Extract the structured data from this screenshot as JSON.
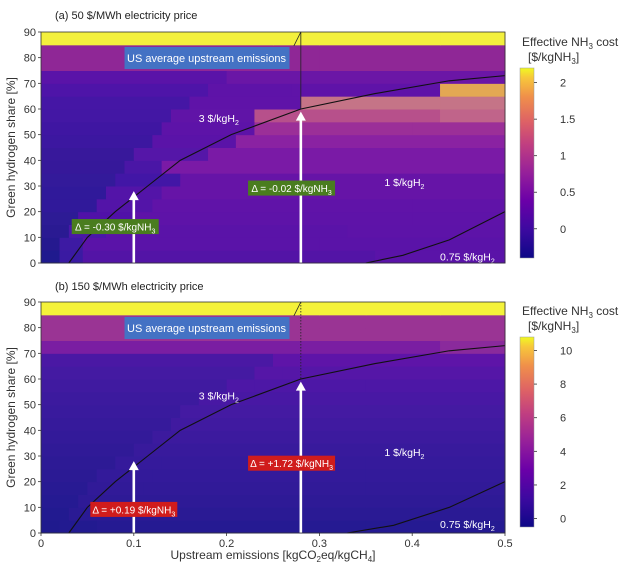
{
  "chart_data": [
    {
      "panel": "(a) 50 $/MWh electricity price",
      "type": "heatmap",
      "ylabel": "Green hydrogen share [%]",
      "xlim": [
        0,
        0.5
      ],
      "ylim": [
        0,
        90
      ],
      "y_ticks": [
        "0",
        "10",
        "20",
        "30",
        "40",
        "50",
        "60",
        "70",
        "80",
        "90"
      ],
      "y_bands": [
        0,
        5,
        10,
        15,
        20,
        25,
        30,
        35,
        40,
        45,
        50,
        55,
        60,
        65,
        70,
        75,
        80,
        85
      ],
      "cell_colors": [
        [
          "#1f1a8e",
          "#3a1aa2",
          "#5314a6",
          "#5a13a8"
        ],
        [
          "#25198f",
          "#3d1aa3",
          "#5a13a8",
          "#5a13a8"
        ],
        [
          "#2a1a92",
          "#4a18a8",
          "#5a13a8",
          "#5d13a8"
        ],
        [
          "#2d1b95",
          "#5011a8",
          "#5e13a8",
          "#5e13a8"
        ],
        [
          "#30199a",
          "#5314a8",
          "#6013a8",
          "#6013a8"
        ],
        [
          "#30199a",
          "#5314a8",
          "#6614a7",
          "#6614a7"
        ],
        [
          "#331a9a",
          "#4216a6",
          "#6614a7",
          "#6614a7"
        ],
        [
          "#36189a",
          "#4a16a6",
          "#7a1aa6",
          "#7a1aa6"
        ],
        [
          "#38189b",
          "#5516a8",
          "#7a1aa6",
          "#7a1aa6"
        ],
        [
          "#3c17a0",
          "#5a13a8",
          "#8a22a2",
          "#8a22a2"
        ],
        [
          "#3f16a2",
          "#5d13a8",
          "#9b2f98",
          "#9b2f98"
        ],
        [
          "#4317a4",
          "#6014a7",
          "#b7508b",
          "#c0648a"
        ],
        [
          "#4516a5",
          "#5f13a8",
          "#c57487",
          "#c57487"
        ],
        [
          "#4e14a8",
          "#5e13a8",
          "#5f13a8",
          "#e3a853"
        ],
        [
          "#5a13a8",
          "#6a16a6",
          "#6b16a6",
          "#6b16a6"
        ],
        [
          "#8f2796",
          "#8f2796",
          "#8f2796",
          "#8f2796"
        ],
        [
          "#8f2796",
          "#8f2796",
          "#8f2796",
          "#8f2796"
        ],
        [
          "#f3f03d",
          "#f3f03d",
          "#f3f03d",
          "#f3f03d"
        ]
      ],
      "cell_breaks": [
        [
          0.02,
          0.045,
          0.36
        ],
        [
          0.02,
          0.045,
          0.3
        ],
        [
          0.03,
          0.07,
          0.33
        ],
        [
          0.04,
          0.1,
          0.4
        ],
        [
          0.06,
          0.12,
          0.4
        ],
        [
          0.07,
          0.13,
          0.45
        ],
        [
          0.08,
          0.15,
          0.4
        ],
        [
          0.09,
          0.13,
          0.4
        ],
        [
          0.1,
          0.18,
          0.4
        ],
        [
          0.12,
          0.21,
          0.4
        ],
        [
          0.13,
          0.23,
          0.4
        ],
        [
          0.14,
          0.23,
          0.43
        ],
        [
          0.16,
          0.28,
          0.43
        ],
        [
          0.18,
          0.27,
          0.43
        ],
        [
          0.2,
          0.3,
          0.43
        ],
        [
          0.25,
          0.3,
          0.43
        ],
        [
          0.25,
          0.3,
          0.43
        ],
        [
          0.25,
          0.3,
          0.43
        ]
      ],
      "contours": [
        {
          "label": "3 $/kgH2",
          "points": [
            [
              0.03,
              0
            ],
            [
              0.05,
              10
            ],
            [
              0.08,
              20
            ],
            [
              0.115,
              30
            ],
            [
              0.15,
              40
            ],
            [
              0.205,
              50
            ],
            [
              0.28,
              60
            ],
            [
              0.36,
              66
            ],
            [
              0.44,
              71
            ],
            [
              0.5,
              73
            ]
          ]
        },
        {
          "label": "0.75 $/kgH2",
          "points": [
            [
              0.35,
              0
            ],
            [
              0.39,
              3
            ],
            [
              0.44,
              9
            ],
            [
              0.5,
              20
            ]
          ]
        }
      ],
      "emission_line_x": 0.28,
      "upstream_label": "US average upstream emissions",
      "contour_labels": [
        {
          "text": "3 $/kgH",
          "sub": "2",
          "x": 0.17,
          "y": 55
        },
        {
          "text": "1 $/kgH",
          "sub": "2",
          "x": 0.37,
          "y": 30
        },
        {
          "text": "0.75 $/kgH",
          "sub": "2",
          "x": 0.43,
          "y": 1
        }
      ],
      "arrows": [
        {
          "x": 0.1,
          "y_from": 0,
          "y_to": 28,
          "label": "Δ = -0.30 $/kgNH",
          "sub": "3",
          "label_x": 0.08,
          "label_y": 14,
          "color": "#4a7d1f"
        },
        {
          "x": 0.28,
          "y_from": 0,
          "y_to": 59,
          "label": "Δ = -0.02 $/kgNH",
          "sub": "3",
          "label_x": 0.27,
          "label_y": 29,
          "color": "#4a7d1f"
        }
      ],
      "colorbar": {
        "title_line1": "Effective NH",
        "title_sub": "3",
        "title_line1_end": " cost",
        "title_line2": "[$/kgNH",
        "title_line2_end": "]",
        "ticks": [
          "0",
          "0.5",
          "1",
          "1.5",
          "2"
        ],
        "range": [
          -0.4,
          2.2
        ]
      }
    },
    {
      "panel": "(b) 150 $/MWh electricity price",
      "type": "heatmap",
      "xlabel": "Upstream emissions [kgCO",
      "xlabel_sub": "2",
      "xlabel_end": "eq/kgCH",
      "xlabel_sub2": "4",
      "xlabel_close": "]",
      "ylabel": "Green hydrogen share [%]",
      "xlim": [
        0,
        0.5
      ],
      "ylim": [
        0,
        90
      ],
      "x_ticks": [
        "0",
        "0.1",
        "0.2",
        "0.3",
        "0.4",
        "0.5"
      ],
      "y_ticks": [
        "0",
        "10",
        "20",
        "30",
        "40",
        "50",
        "60",
        "70",
        "80",
        "90"
      ],
      "y_bands": [
        0,
        5,
        10,
        15,
        20,
        25,
        30,
        35,
        40,
        45,
        50,
        55,
        60,
        65,
        70,
        75,
        80,
        85
      ],
      "cell_colors": [
        [
          "#1f1a8e",
          "#221a90",
          "#251a92",
          "#251a92"
        ],
        [
          "#221a90",
          "#2a1a94",
          "#2a1a94",
          "#2a1a94"
        ],
        [
          "#251a92",
          "#2e1a96",
          "#2e1a96",
          "#2e1a96"
        ],
        [
          "#281a93",
          "#311a98",
          "#311a98",
          "#311a98"
        ],
        [
          "#2b1a94",
          "#331a9a",
          "#331a9a",
          "#331a9a"
        ],
        [
          "#2d1a95",
          "#351a9b",
          "#351a9b",
          "#351a9b"
        ],
        [
          "#301a97",
          "#381a9c",
          "#381a9c",
          "#381a9c"
        ],
        [
          "#331a99",
          "#3c1a9e",
          "#3c1a9e",
          "#3c1a9e"
        ],
        [
          "#361a9b",
          "#401aa0",
          "#401aa0",
          "#401aa0"
        ],
        [
          "#391a9d",
          "#441aa2",
          "#441aa2",
          "#441aa2"
        ],
        [
          "#3c1a9e",
          "#4818a4",
          "#4818a4",
          "#4818a4"
        ],
        [
          "#401aa0",
          "#4d17a6",
          "#4d17a6",
          "#4d17a6"
        ],
        [
          "#441aa2",
          "#5516a7",
          "#5516a7",
          "#5516a7"
        ],
        [
          "#4a18a4",
          "#5e14a8",
          "#5e14a8",
          "#5e14a8"
        ],
        [
          "#7a1ea2",
          "#7a1ea2",
          "#7a1ea2",
          "#8a2a9c"
        ],
        [
          "#9a3494",
          "#9a3494",
          "#9a3494",
          "#9a3494"
        ],
        [
          "#9a3494",
          "#9a3494",
          "#9a3494",
          "#9a3494"
        ],
        [
          "#f4f23a",
          "#f4f23a",
          "#f4f23a",
          "#f4f23a"
        ]
      ],
      "cell_breaks": [
        [
          0.02,
          0.06,
          0.35
        ],
        [
          0.03,
          0.08,
          0.35
        ],
        [
          0.04,
          0.1,
          0.35
        ],
        [
          0.05,
          0.11,
          0.35
        ],
        [
          0.06,
          0.12,
          0.35
        ],
        [
          0.08,
          0.13,
          0.35
        ],
        [
          0.1,
          0.15,
          0.35
        ],
        [
          0.12,
          0.17,
          0.35
        ],
        [
          0.14,
          0.18,
          0.35
        ],
        [
          0.15,
          0.19,
          0.35
        ],
        [
          0.17,
          0.2,
          0.35
        ],
        [
          0.2,
          0.23,
          0.35
        ],
        [
          0.23,
          0.26,
          0.35
        ],
        [
          0.25,
          0.28,
          0.35
        ],
        [
          0.3,
          0.35,
          0.43
        ],
        [
          0.3,
          0.35,
          0.43
        ],
        [
          0.3,
          0.35,
          0.43
        ],
        [
          0.3,
          0.35,
          0.43
        ]
      ],
      "contours": [
        {
          "label": "3 $/kgH2",
          "points": [
            [
              0.03,
              0
            ],
            [
              0.05,
              10
            ],
            [
              0.08,
              20
            ],
            [
              0.115,
              30
            ],
            [
              0.15,
              40
            ],
            [
              0.205,
              50
            ],
            [
              0.28,
              60
            ],
            [
              0.36,
              66
            ],
            [
              0.44,
              71
            ],
            [
              0.5,
              73
            ]
          ]
        },
        {
          "label": "0.75 $/kgH2",
          "points": [
            [
              0.33,
              0
            ],
            [
              0.38,
              3
            ],
            [
              0.44,
              10
            ],
            [
              0.5,
              20
            ]
          ]
        }
      ],
      "emission_line_x": 0.28,
      "upstream_label": "US average upstream emissions",
      "contour_labels": [
        {
          "text": "3 $/kgH",
          "sub": "2",
          "x": 0.17,
          "y": 52
        },
        {
          "text": "1 $/kgH",
          "sub": "2",
          "x": 0.37,
          "y": 30
        },
        {
          "text": "0.75 $/kgH",
          "sub": "2",
          "x": 0.43,
          "y": 2
        }
      ],
      "arrows": [
        {
          "x": 0.1,
          "y_from": 0,
          "y_to": 28,
          "label": "Δ = +0.19 $/kgNH",
          "sub": "3",
          "label_x": 0.1,
          "label_y": 9,
          "color": "#d01c1c"
        },
        {
          "x": 0.28,
          "y_from": 0,
          "y_to": 59,
          "label": "Δ = +1.72 $/kgNH",
          "sub": "3",
          "label_x": 0.27,
          "label_y": 27,
          "color": "#d01c1c"
        }
      ],
      "colorbar": {
        "title_line1": "Effective NH",
        "title_sub": "3",
        "title_line1_end": " cost",
        "title_line2": "[$/kgNH",
        "title_line2_end": "]",
        "ticks": [
          "0",
          "2",
          "4",
          "6",
          "8",
          "10"
        ],
        "range": [
          -0.5,
          10.8
        ]
      }
    }
  ]
}
